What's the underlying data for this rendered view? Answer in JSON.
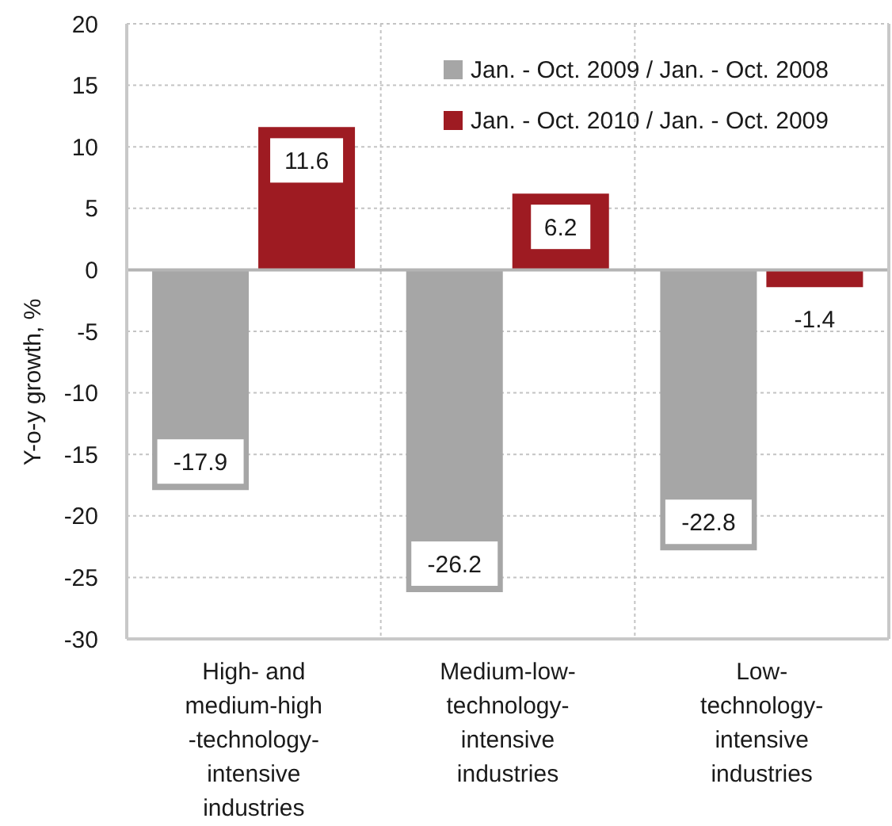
{
  "chart_data": {
    "type": "bar",
    "ylabel": "Y-o-y growth, %",
    "categories": [
      "High- and\nmedium-high\n-technology-\nintensive\nindustries",
      "Medium-low-\ntechnology-\nintensive\nindustries",
      "Low-\ntechnology-\nintensive\nindustries"
    ],
    "series": [
      {
        "name": "Jan. - Oct. 2009 / Jan. - Oct. 2008",
        "color": "#a6a6a6",
        "values": [
          -17.9,
          -26.2,
          -22.8
        ]
      },
      {
        "name": "Jan. - Oct. 2010 / Jan. - Oct. 2009",
        "color": "#9e1b22",
        "values": [
          11.6,
          6.2,
          -1.4
        ]
      }
    ],
    "ylim": [
      -30,
      20
    ],
    "yticks": [
      -30,
      -25,
      -20,
      -15,
      -10,
      -5,
      0,
      5,
      10,
      15,
      20
    ],
    "grid": true,
    "legend": "top right",
    "data_labels": true
  }
}
